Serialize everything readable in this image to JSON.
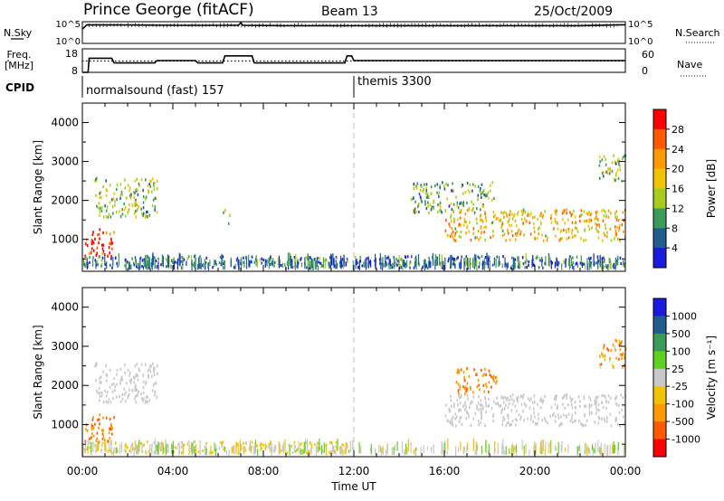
{
  "header": {
    "station": "Prince George (fitACF)",
    "beam": "Beam 13",
    "date": "25/Oct/2009"
  },
  "strip_labels": {
    "nsky": "N.Sky",
    "nsky_top": "10^5",
    "nsky_bottom": "10^0",
    "nsearch": "N.Search",
    "nsearch_top": "10^5",
    "nsearch_bottom": "10^0",
    "freq_line1": "Freq.",
    "freq_line2": "[MHz]",
    "freq_top": "18",
    "freq_bottom": "8",
    "nave": "Nave",
    "nave_top": "60",
    "nave_bottom": "0",
    "cpid": "CPID",
    "cpid_1": "normalsound (fast) 157",
    "cpid_2": "themis 3300"
  },
  "x_axis": {
    "label": "Time UT",
    "ticks": [
      "00:00",
      "04:00",
      "08:00",
      "12:00",
      "16:00",
      "20:00",
      "00:00"
    ]
  },
  "colorbar_power": {
    "label": "Power [dB]",
    "ticks": [
      "28",
      "24",
      "20",
      "16",
      "12",
      "8",
      "4"
    ],
    "colors": [
      "#ff0000",
      "#ff5a00",
      "#ff9900",
      "#f2c300",
      "#a8cc1e",
      "#3c9a5a",
      "#215e8e",
      "#1a1ae0"
    ]
  },
  "colorbar_velocity": {
    "label": "Velocity [m s⁻¹]",
    "ticks": [
      "1000",
      "500",
      "100",
      "25",
      "-25",
      "-100",
      "-500",
      "-1000"
    ],
    "colors": [
      "#1a1ae0",
      "#215e8e",
      "#3c9a5a",
      "#5fd21e",
      "#c8c8c8",
      "#f2c300",
      "#ff9900",
      "#ff5a00",
      "#ff0000"
    ]
  },
  "chart_data": [
    {
      "type": "heatmap",
      "panel": "power",
      "title": "",
      "xlabel": "Time UT",
      "ylabel": "Slant Range [km]",
      "xlim": [
        "00:00",
        "24:00"
      ],
      "ylim": [
        180,
        4500
      ],
      "y_ticks": [
        1000,
        2000,
        3000,
        4000
      ],
      "colorbar_range_db": [
        0,
        30
      ],
      "regions": [
        {
          "t0": 0.1,
          "t1": 1.4,
          "r0": 550,
          "r1": 1300,
          "power_db": 28
        },
        {
          "t0": 0.0,
          "t1": 12.0,
          "r0": 300,
          "r1": 600,
          "power_db": 6
        },
        {
          "t0": 0.5,
          "t1": 3.3,
          "r0": 1600,
          "r1": 2600,
          "power_db": 12
        },
        {
          "t0": 6.2,
          "t1": 6.5,
          "r0": 1400,
          "r1": 1800,
          "power_db": 14
        },
        {
          "t0": 14.5,
          "t1": 18.2,
          "r0": 1700,
          "r1": 2500,
          "power_db": 10
        },
        {
          "t0": 16.0,
          "t1": 24.0,
          "r0": 1000,
          "r1": 1800,
          "power_db": 18
        },
        {
          "t0": 12.0,
          "t1": 24.0,
          "r0": 300,
          "r1": 600,
          "power_db": 6
        },
        {
          "t0": 22.8,
          "t1": 24.0,
          "r0": 2500,
          "r1": 3200,
          "power_db": 14
        }
      ]
    },
    {
      "type": "heatmap",
      "panel": "velocity",
      "title": "",
      "xlabel": "Time UT",
      "ylabel": "Slant Range [km]",
      "xlim": [
        "00:00",
        "24:00"
      ],
      "ylim": [
        180,
        4500
      ],
      "y_ticks": [
        1000,
        2000,
        3000,
        4000
      ],
      "regions": [
        {
          "t0": 0.1,
          "t1": 1.4,
          "r0": 550,
          "r1": 1300,
          "velocity": -300
        },
        {
          "t0": 0.0,
          "t1": 12.0,
          "r0": 300,
          "r1": 600,
          "velocity": -30
        },
        {
          "t0": 0.5,
          "t1": 3.3,
          "r0": 1600,
          "r1": 2600,
          "velocity": 0
        },
        {
          "t0": 16.5,
          "t1": 18.3,
          "r0": 1800,
          "r1": 2500,
          "velocity": -300
        },
        {
          "t0": 16.0,
          "t1": 24.0,
          "r0": 1000,
          "r1": 1800,
          "velocity": 0
        },
        {
          "t0": 22.8,
          "t1": 24.0,
          "r0": 2500,
          "r1": 3200,
          "velocity": -200
        }
      ]
    },
    {
      "type": "line",
      "panel": "nsky",
      "ylabel": "N.Sky",
      "scale": "log",
      "ylim": [
        1,
        100000
      ],
      "x": [
        0,
        0.2,
        2,
        4,
        6,
        6.9,
        7,
        7.1,
        9,
        11.5,
        12,
        14,
        16,
        18,
        20,
        22,
        23.8,
        24
      ],
      "values": [
        2000,
        20000,
        18000,
        15000,
        15000,
        15000,
        60000,
        15000,
        12000,
        12000,
        12000,
        12000,
        12000,
        12000,
        12000,
        12000,
        20000,
        20000
      ]
    },
    {
      "type": "line",
      "panel": "freq",
      "ylabel": "Freq. [MHz]",
      "ylim": [
        8,
        18
      ],
      "x": [
        0,
        0.25,
        0.3,
        1.3,
        1.4,
        3.2,
        3.3,
        5.0,
        5.1,
        6.2,
        6.3,
        7.5,
        7.6,
        11.6,
        11.7,
        11.9,
        12.0,
        24.0
      ],
      "values": [
        8,
        8,
        14,
        14,
        12,
        12,
        13,
        13,
        12,
        12,
        15,
        15,
        12,
        12,
        15,
        15,
        13,
        13
      ]
    },
    {
      "type": "line",
      "panel": "nave",
      "ylabel": "Nave",
      "ylim": [
        0,
        60
      ],
      "x": [
        0,
        24
      ],
      "values": [
        29,
        29
      ]
    }
  ]
}
